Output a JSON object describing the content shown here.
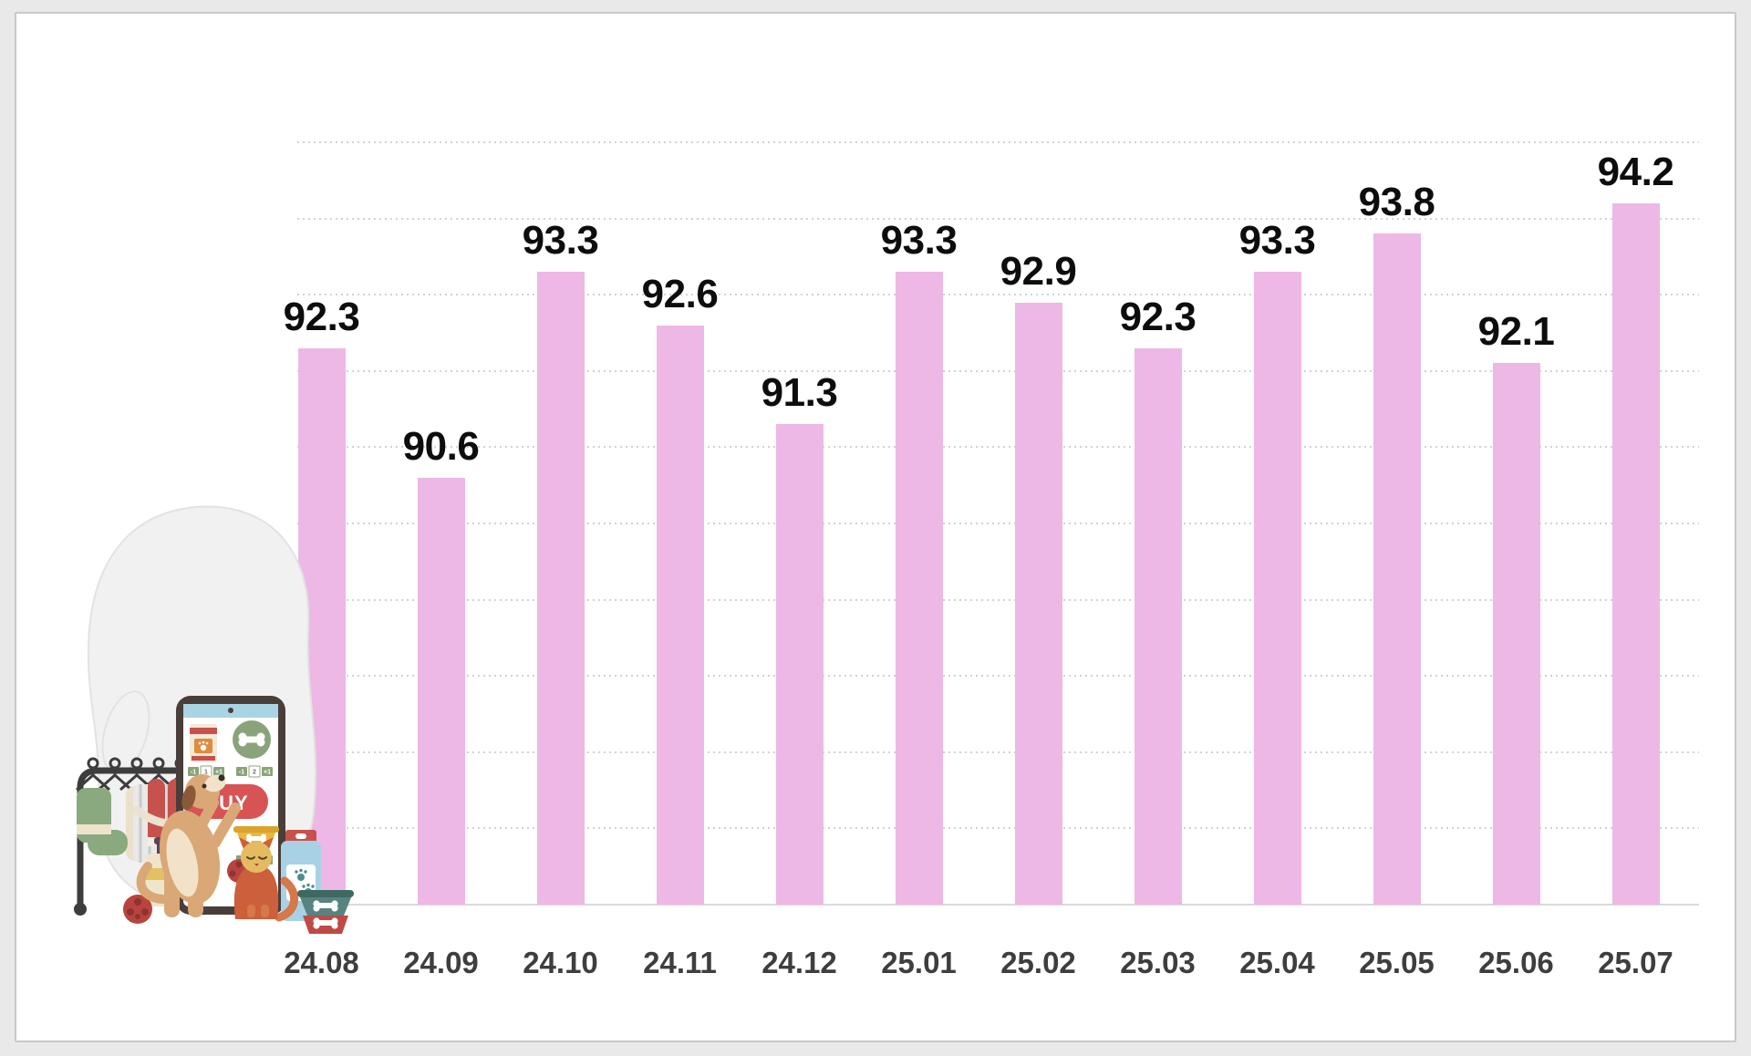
{
  "page": {
    "background_color": "#e9e9e9",
    "card_color": "#ffffff",
    "card_border_color": "#c9c9c9"
  },
  "chart_data": {
    "type": "bar",
    "title": "",
    "categories": [
      "24.08",
      "24.09",
      "24.10",
      "24.11",
      "24.12",
      "25.01",
      "25.02",
      "25.03",
      "25.04",
      "25.05",
      "25.06",
      "25.07"
    ],
    "values": [
      92.3,
      90.6,
      93.3,
      92.6,
      91.3,
      93.3,
      92.9,
      92.3,
      93.3,
      93.8,
      92.1,
      94.2
    ],
    "bar_color": "#edb8e5",
    "value_label_color": "#0d0d0d",
    "axis_label_color": "#3e3e3e",
    "gridline_color": "#d2d2d2",
    "baseline_color": "#dadada",
    "ylim": [
      85,
      95
    ],
    "gridline_step": 1,
    "grid": "horizontal-dotted",
    "legend": "none",
    "value_labels_shown": true,
    "xlabel": "",
    "ylabel": ""
  },
  "illustration": {
    "name": "pet-shop-app-illustration",
    "buy_label": "BUY",
    "chips": {
      "minus": "-1",
      "plus": "+1",
      "qty_bag": "1",
      "qty_bone": "2",
      "qty_bowl": "1"
    }
  }
}
